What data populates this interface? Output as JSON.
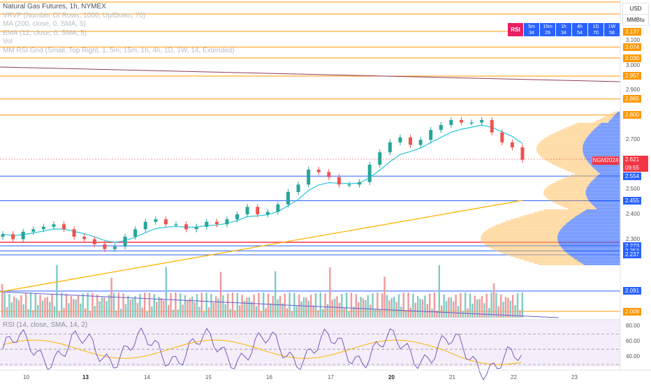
{
  "legend": {
    "title": "Natural Gas Futures, 1h, NYMEX",
    "indicators": [
      "VRVP (Number Of Rows, 1000, Up/Down, 70)",
      "MA (200, close, 0, SMA, 5)",
      "EMA (12, close, 0, SMA, 5)",
      "Vol",
      "MM RSI Gnd (Small, Top Right, 1, 5m, 15m, 1h, 4h, 1D, 1W, 14, Extended)"
    ]
  },
  "units": {
    "currency": "USD",
    "unit": "MMBtu"
  },
  "rsi_table": {
    "header": "RSI",
    "cells": [
      {
        "tf": "5m",
        "val": "34"
      },
      {
        "tf": "15m",
        "val": "29"
      },
      {
        "tf": "1h",
        "val": "34"
      },
      {
        "tf": "4h",
        "val": "54"
      },
      {
        "tf": "1D",
        "val": "70"
      },
      {
        "tf": "1W",
        "val": "58"
      }
    ]
  },
  "price_axis": {
    "ticks": [
      "3.100",
      "3.000",
      "2.900",
      "2.700",
      "2.500",
      "2.400",
      "2.300"
    ],
    "labels": [
      {
        "v": "3.137",
        "color": "#ff9800"
      },
      {
        "v": "3.074",
        "color": "#ff9800"
      },
      {
        "v": "3.030",
        "color": "#ff9800"
      },
      {
        "v": "2.957",
        "color": "#ff9800"
      },
      {
        "v": "2.865",
        "color": "#ff9800"
      },
      {
        "v": "2.800",
        "color": "#ff9800"
      },
      {
        "v": "2.554",
        "color": "#2962ff"
      },
      {
        "v": "2.455",
        "color": "#2962ff"
      },
      {
        "v": "2.273",
        "color": "#2962ff"
      },
      {
        "v": "2.253",
        "color": "#2962ff"
      },
      {
        "v": "2.237",
        "color": "#2962ff"
      },
      {
        "v": "2.091",
        "color": "#2962ff"
      },
      {
        "v": "2.009",
        "color": "#ff9800"
      }
    ],
    "current_price": "2.621",
    "countdown": "09:55",
    "symbol_tag": "NGM2024"
  },
  "rsi_pane": {
    "legend": "RSI (14, close, SMA, 14, 2)",
    "ticks": [
      "80.00",
      "60.00",
      "40.00"
    ]
  },
  "date_axis": [
    {
      "t": "10",
      "bold": false
    },
    {
      "t": "13",
      "bold": true
    },
    {
      "t": "14",
      "bold": false
    },
    {
      "t": "15",
      "bold": false
    },
    {
      "t": "16",
      "bold": false
    },
    {
      "t": "17",
      "bold": false
    },
    {
      "t": "20",
      "bold": true
    },
    {
      "t": "21",
      "bold": false
    },
    {
      "t": "22",
      "bold": false
    },
    {
      "t": "23",
      "bold": false
    }
  ],
  "chart_data": {
    "type": "candlestick",
    "title": "Natural Gas Futures, 1h, NYMEX",
    "close_approx": [
      2.32,
      2.3,
      2.33,
      2.34,
      2.35,
      2.36,
      2.34,
      2.31,
      2.3,
      2.28,
      2.26,
      2.27,
      2.31,
      2.34,
      2.37,
      2.38,
      2.36,
      2.36,
      2.34,
      2.35,
      2.37,
      2.36,
      2.38,
      2.4,
      2.43,
      2.4,
      2.41,
      2.44,
      2.49,
      2.52,
      2.58,
      2.57,
      2.55,
      2.52,
      2.52,
      2.53,
      2.6,
      2.65,
      2.69,
      2.71,
      2.68,
      2.7,
      2.74,
      2.76,
      2.78,
      2.77,
      2.77,
      2.78,
      2.73,
      2.69,
      2.67,
      2.62
    ],
    "horizontal_levels_orange": [
      3.137,
      3.074,
      3.03,
      2.957,
      2.865,
      2.8,
      2.009
    ],
    "horizontal_levels_blue": [
      2.554,
      2.455,
      2.273,
      2.253,
      2.237,
      2.091
    ],
    "ylim": [
      1.99,
      3.18
    ],
    "rsi_ylim": [
      30,
      85
    ],
    "rsi_levels": [
      70,
      50,
      30
    ]
  }
}
